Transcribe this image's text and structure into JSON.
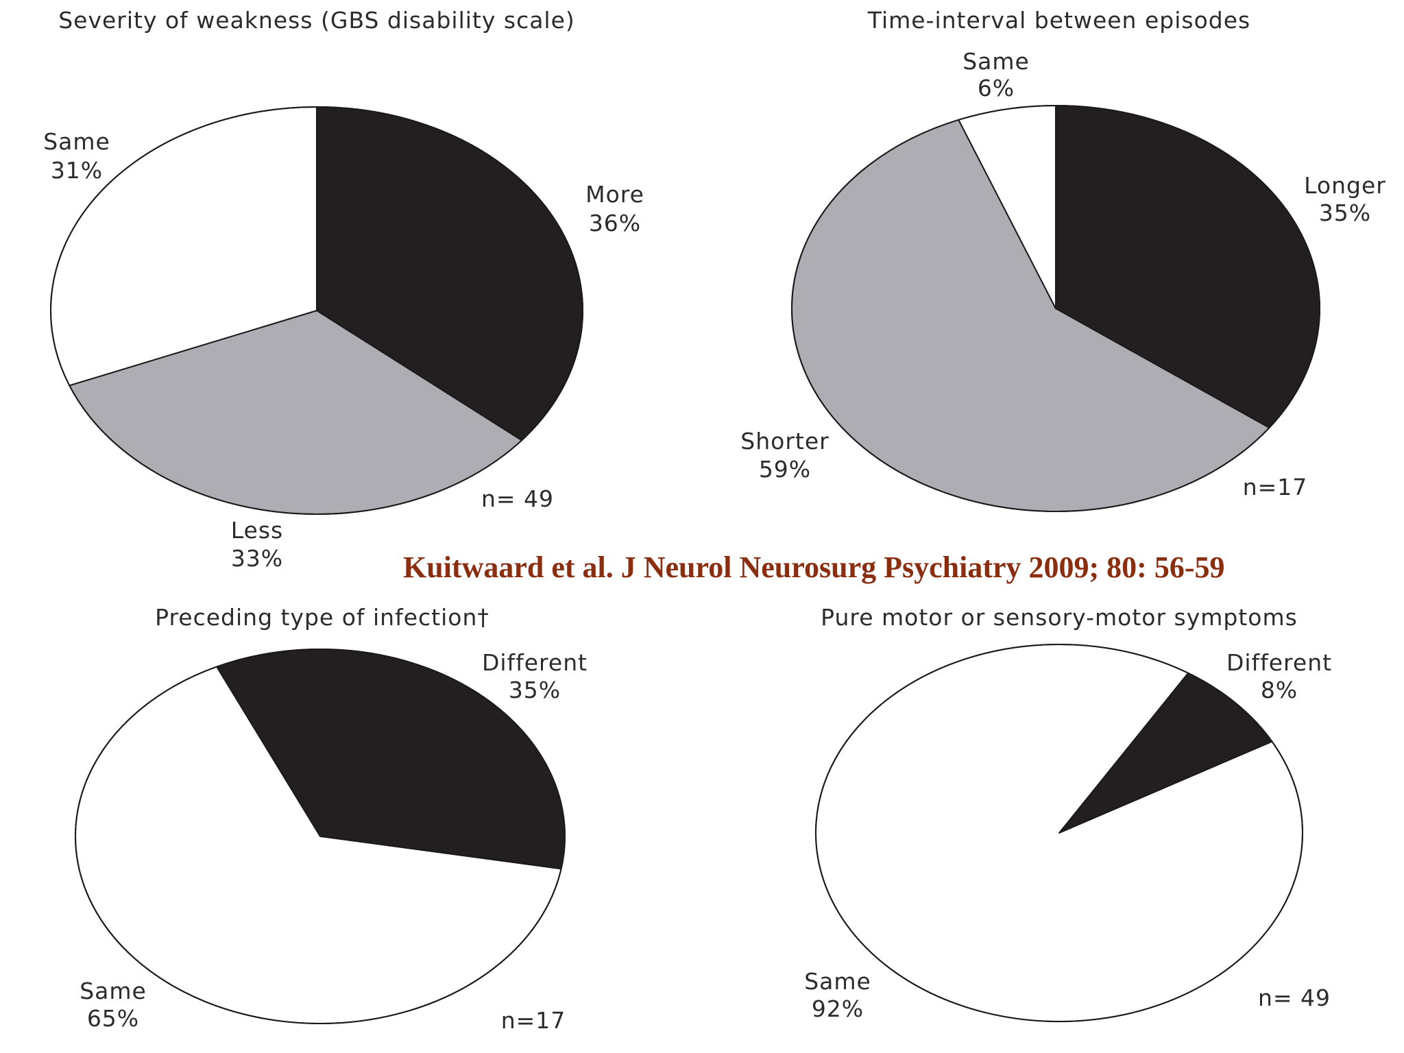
{
  "citation": {
    "text": "Kuitwaard et al. J Neurol Neurosurg Psychiatry 2009; 80: 56-59",
    "color": "#8b2e10"
  },
  "palette": {
    "black": "#231f20",
    "gray": "#aeadb3",
    "white": "#ffffff"
  },
  "chart_data": [
    {
      "type": "pie",
      "title": "Severity of weakness (GBS disability scale)",
      "n_label": "n= 49",
      "slices": [
        {
          "label": "More",
          "percent_label": "36%",
          "value": 36,
          "color": "black"
        },
        {
          "label": "Less",
          "percent_label": "33%",
          "value": 33,
          "color": "gray"
        },
        {
          "label": "Same",
          "percent_label": "31%",
          "value": 31,
          "color": "white"
        }
      ]
    },
    {
      "type": "pie",
      "title": "Time-interval between episodes",
      "n_label": "n=17",
      "slices": [
        {
          "label": "Longer",
          "percent_label": "35%",
          "value": 35,
          "color": "black"
        },
        {
          "label": "Shorter",
          "percent_label": "59%",
          "value": 59,
          "color": "gray"
        },
        {
          "label": "Same",
          "percent_label": "6%",
          "value": 6,
          "color": "white"
        }
      ]
    },
    {
      "type": "pie",
      "title": "Preceding type of infection†",
      "n_label": "n=17",
      "slices": [
        {
          "label": "Different",
          "percent_label": "35%",
          "value": 35,
          "color": "black"
        },
        {
          "label": "Same",
          "percent_label": "65%",
          "value": 65,
          "color": "white"
        }
      ]
    },
    {
      "type": "pie",
      "title": "Pure motor or sensory-motor symptoms",
      "n_label": "n= 49",
      "slices": [
        {
          "label": "Different",
          "percent_label": "8%",
          "value": 8,
          "color": "black"
        },
        {
          "label": "Same",
          "percent_label": "92%",
          "value": 92,
          "color": "white"
        }
      ]
    }
  ]
}
